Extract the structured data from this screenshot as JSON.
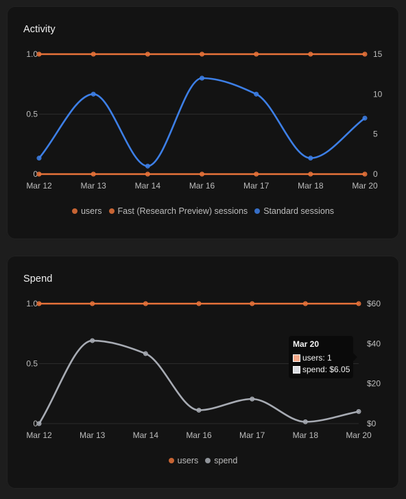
{
  "colors": {
    "orange": "#e8733a",
    "blue": "#3d7fe6",
    "gray": "#a7abb3",
    "grid": "#2b2b2b"
  },
  "activity": {
    "title": "Activity",
    "legend": [
      {
        "label": "users",
        "color": "#e8733a"
      },
      {
        "label": "Fast (Research Preview) sessions",
        "color": "#e8733a"
      },
      {
        "label": "Standard sessions",
        "color": "#3d7fe6"
      }
    ]
  },
  "spend": {
    "title": "Spend",
    "legend": [
      {
        "label": "users",
        "color": "#e8733a"
      },
      {
        "label": "spend",
        "color": "#a7abb3"
      }
    ],
    "tooltip": {
      "title": "Mar 20",
      "rows": [
        {
          "text": "users: 1",
          "color": "#f5a98a"
        },
        {
          "text": "spend: $6.05",
          "color": "#d9dbe0"
        }
      ]
    }
  },
  "chart_data": [
    {
      "type": "line",
      "title": "Activity",
      "categories": [
        "Mar 12",
        "Mar 13",
        "Mar 14",
        "Mar 16",
        "Mar 17",
        "Mar 18",
        "Mar 20"
      ],
      "y_left": {
        "ticks": [
          "0",
          "0.5",
          "1.0"
        ],
        "range": [
          0,
          1
        ]
      },
      "y_right": {
        "ticks": [
          "0",
          "5",
          "10",
          "15"
        ],
        "range": [
          0,
          15
        ]
      },
      "grid": true,
      "legend_position": "bottom",
      "series": [
        {
          "name": "users",
          "axis": "left",
          "color": "#e8733a",
          "values": [
            1,
            1,
            1,
            1,
            1,
            1,
            1
          ]
        },
        {
          "name": "Fast (Research Preview) sessions",
          "axis": "right",
          "color": "#e8733a",
          "values": [
            0,
            0,
            0,
            0,
            0,
            0,
            0
          ]
        },
        {
          "name": "Standard sessions",
          "axis": "right",
          "color": "#3d7fe6",
          "values": [
            2,
            10,
            1,
            12,
            10,
            2,
            7
          ]
        }
      ]
    },
    {
      "type": "line",
      "title": "Spend",
      "categories": [
        "Mar 12",
        "Mar 13",
        "Mar 14",
        "Mar 16",
        "Mar 17",
        "Mar 18",
        "Mar 20"
      ],
      "y_left": {
        "ticks": [
          "0",
          "0.5",
          "1.0"
        ],
        "range": [
          0,
          1
        ]
      },
      "y_right": {
        "ticks": [
          "$0",
          "$20",
          "$40",
          "$60"
        ],
        "range": [
          0,
          60
        ]
      },
      "grid": true,
      "legend_position": "bottom",
      "series": [
        {
          "name": "users",
          "axis": "left",
          "color": "#e8733a",
          "values": [
            1,
            1,
            1,
            1,
            1,
            1,
            1
          ]
        },
        {
          "name": "spend",
          "axis": "right",
          "color": "#a7abb3",
          "values": [
            0,
            41.5,
            35,
            6.7,
            12.3,
            0.9,
            6.05
          ]
        }
      ]
    }
  ]
}
